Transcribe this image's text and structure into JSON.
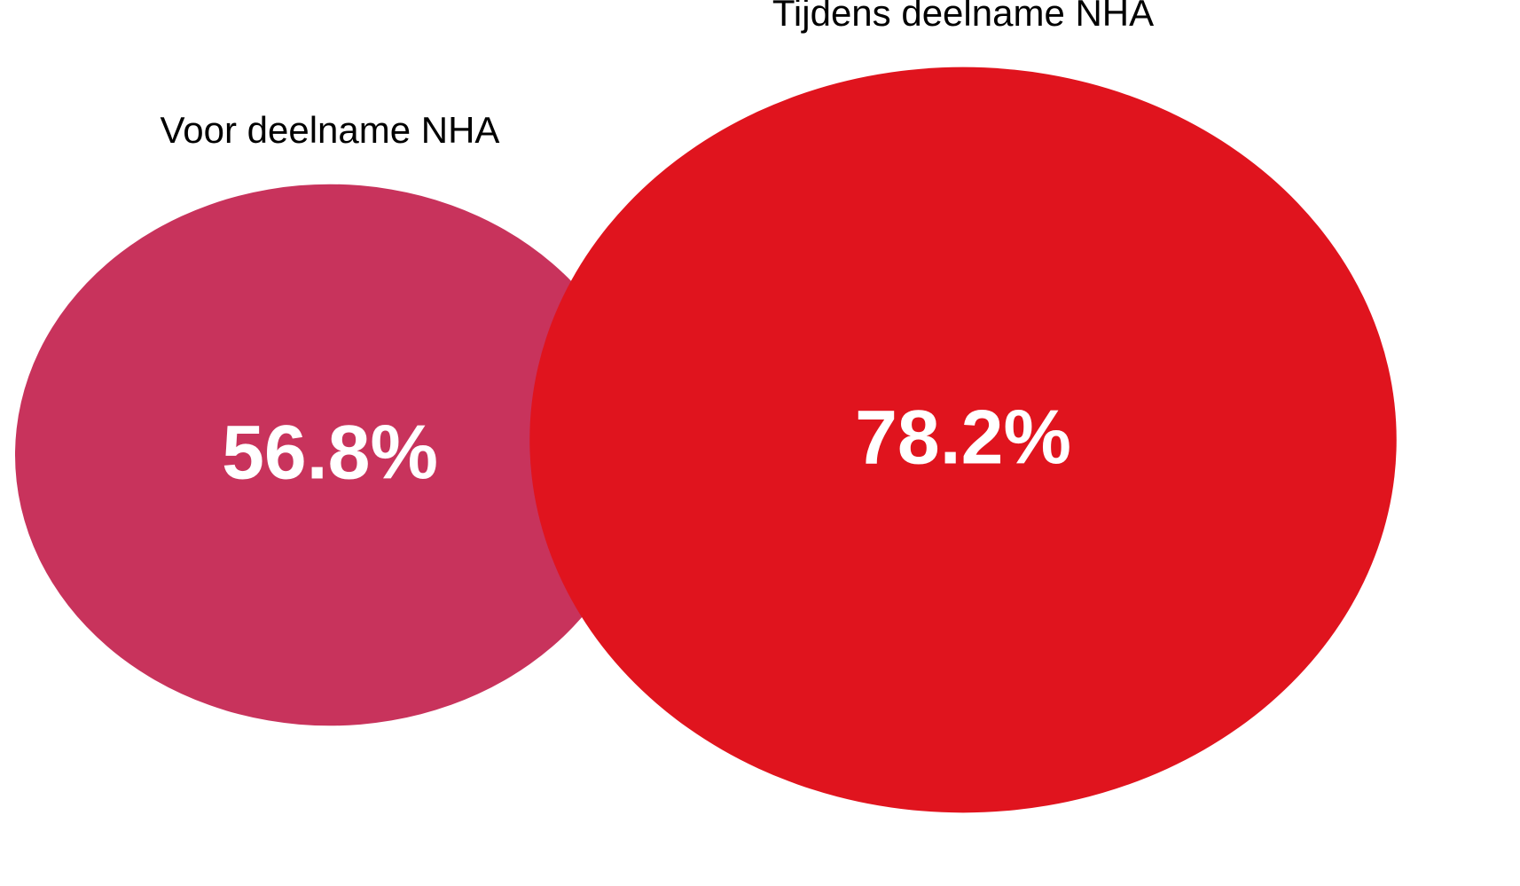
{
  "chart_data": {
    "type": "bubble",
    "categories": [
      "Voor deelname NHA",
      "Tijdens deelname NHA"
    ],
    "values": [
      56.8,
      78.2
    ],
    "value_labels": [
      "56.8%",
      "78.2%"
    ],
    "colors": [
      "#c8335c",
      "#e0141e"
    ]
  }
}
